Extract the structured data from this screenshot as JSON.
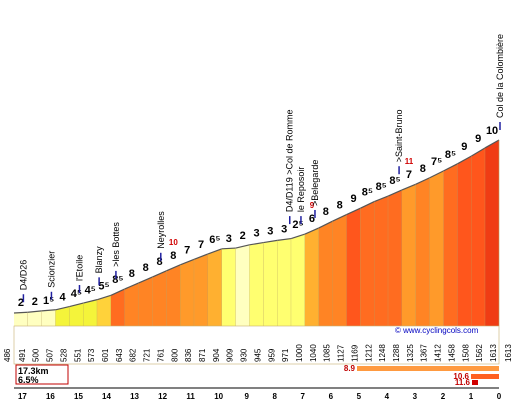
{
  "chart_data": {
    "type": "area",
    "title": "Col de la Colombière",
    "summary": {
      "distance": "17.3km",
      "avg_gradient": "6.5%"
    },
    "website": "www.cyclingcols.com",
    "km_ticks": [
      17,
      16,
      15,
      14,
      13,
      12,
      11,
      10,
      9,
      8,
      7,
      6,
      5,
      4,
      3,
      2,
      1,
      0
    ],
    "start_altitude": 486,
    "end_altitude": 1613,
    "segments": [
      {
        "alt": 491,
        "g": "2",
        "g_num": 2
      },
      {
        "alt": 500,
        "g": "2",
        "g_num": 2
      },
      {
        "alt": 507,
        "g": "1⁵",
        "g_num": 1.5
      },
      {
        "alt": 528,
        "g": "4",
        "g_num": 4
      },
      {
        "alt": 551,
        "g": "4⁵",
        "g_num": 4.5
      },
      {
        "alt": 573,
        "g": "4⁵",
        "g_num": 4.5
      },
      {
        "alt": 601,
        "g": "5⁵",
        "g_num": 5.5
      },
      {
        "alt": 643,
        "g": "8⁵",
        "g_num": 8.5
      },
      {
        "alt": 682,
        "g": "8",
        "g_num": 8
      },
      {
        "alt": 721,
        "g": "8",
        "g_num": 8
      },
      {
        "alt": 761,
        "g": "8",
        "g_num": 8
      },
      {
        "alt": 800,
        "g": "8",
        "g_num": 8
      },
      {
        "alt": 836,
        "g": "7",
        "g_num": 7
      },
      {
        "alt": 871,
        "g": "7",
        "g_num": 7
      },
      {
        "alt": 904,
        "g": "6⁵",
        "g_num": 6.5
      },
      {
        "alt": 909,
        "g": "3",
        "g_num": 3
      },
      {
        "alt": 930,
        "g": "2",
        "g_num": 2
      },
      {
        "alt": 945,
        "g": "3",
        "g_num": 3
      },
      {
        "alt": 959,
        "g": "3",
        "g_num": 3
      },
      {
        "alt": 971,
        "g": "3",
        "g_num": 3
      },
      {
        "alt": 1000,
        "g": "2⁵",
        "g_num": 2.5
      },
      {
        "alt": 1040,
        "g": "6",
        "g_num": 6
      },
      {
        "alt": 1085,
        "g": "8",
        "g_num": 8
      },
      {
        "alt": 1127,
        "g": "8",
        "g_num": 8
      },
      {
        "alt": 1169,
        "g": "9",
        "g_num": 9
      },
      {
        "alt": 1212,
        "g": "8⁵",
        "g_num": 8.5
      },
      {
        "alt": 1248,
        "g": "8⁵",
        "g_num": 8.5
      },
      {
        "alt": 1288,
        "g": "8⁵",
        "g_num": 8.5
      },
      {
        "alt": 1325,
        "g": "7",
        "g_num": 7
      },
      {
        "alt": 1367,
        "g": "8",
        "g_num": 8
      },
      {
        "alt": 1412,
        "g": "7⁵",
        "g_num": 7.5
      },
      {
        "alt": 1458,
        "g": "8⁵",
        "g_num": 8.5
      },
      {
        "alt": 1508,
        "g": "9",
        "g_num": 9
      },
      {
        "alt": 1562,
        "g": "9",
        "g_num": 9
      },
      {
        "alt": 1613,
        "g": "10",
        "g_num": 10
      }
    ],
    "extra_grades": [
      {
        "seg": 31,
        "g": "10",
        "g_num": 10
      },
      {
        "seg": 32,
        "g": "11",
        "g_num": 11
      },
      {
        "seg": 33,
        "g": "10",
        "g_num": 10
      }
    ],
    "steep_marks": [
      {
        "seg": 11,
        "value": "10"
      },
      {
        "seg": 21,
        "value": "9"
      },
      {
        "seg": 28,
        "value": "11"
      }
    ],
    "places": [
      {
        "name": "D4/D26",
        "km": 17
      },
      {
        "name": "Scionzier",
        "km": 16
      },
      {
        "name": "l'Etoile",
        "km": 15
      },
      {
        "name": "Blanzy",
        "km": 14.3
      },
      {
        "name": ">les Bottes",
        "km": 13.7
      },
      {
        "name": "Neyrolles",
        "km": 12.1
      },
      {
        "name": "D4/D119 >Col de Romme",
        "km": 7.5
      },
      {
        "name": "le Reposoir",
        "km": 7.1
      },
      {
        "name": ">Belegarde",
        "km": 6.6
      },
      {
        "name": ">Saint-Bruno",
        "km": 3.6
      },
      {
        "name": "Col de la Colombière",
        "km": 0
      }
    ],
    "stats_bars": [
      {
        "value": "8.9",
        "label_at": "left"
      },
      {
        "value": "10.6",
        "label_at": "left"
      },
      {
        "value": "11.6",
        "label_at": "left"
      }
    ]
  }
}
